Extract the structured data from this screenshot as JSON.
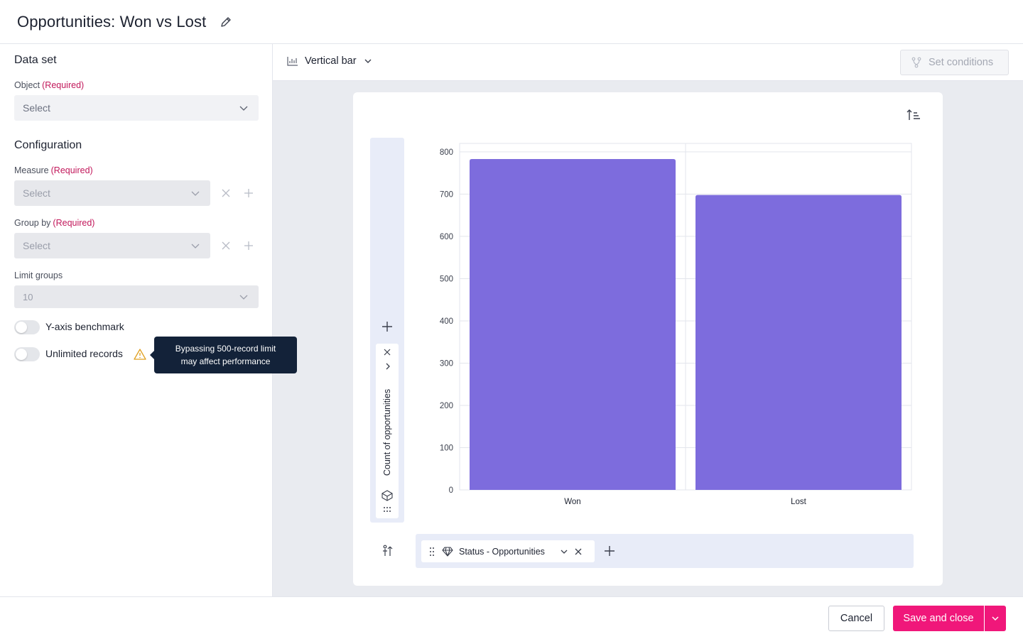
{
  "header": {
    "title": "Opportunities: Won vs Lost"
  },
  "dataset": {
    "title": "Data set",
    "object_label": "Object",
    "required": "(Required)",
    "object_value": "Select"
  },
  "config": {
    "title": "Configuration",
    "measure_label": "Measure",
    "measure_value": "Select",
    "groupby_label": "Group by",
    "groupby_value": "Select",
    "limit_label": "Limit groups",
    "limit_value": "10",
    "benchmark_label": "Y-axis benchmark",
    "unlimited_label": "Unlimited records",
    "tooltip_line1": "Bypassing 500-record limit",
    "tooltip_line2": "may affect performance"
  },
  "toolbar": {
    "chart_type": "Vertical bar",
    "set_conditions": "Set conditions"
  },
  "yaxis_field": "Count of opportunities",
  "xaxis_field": "Status - Opportunities",
  "colors": {
    "bar": "#7d6cdd",
    "accent": "#f0177a",
    "required": "#c2185b"
  },
  "chart_data": {
    "type": "bar",
    "categories": [
      "Won",
      "Lost"
    ],
    "values": [
      783,
      698
    ],
    "yticks": [
      0,
      100,
      200,
      300,
      400,
      500,
      600,
      700,
      800
    ],
    "ylim": [
      0,
      820
    ],
    "grid": true,
    "xlabel": "",
    "ylabel": ""
  },
  "footer": {
    "cancel": "Cancel",
    "save": "Save and close"
  }
}
